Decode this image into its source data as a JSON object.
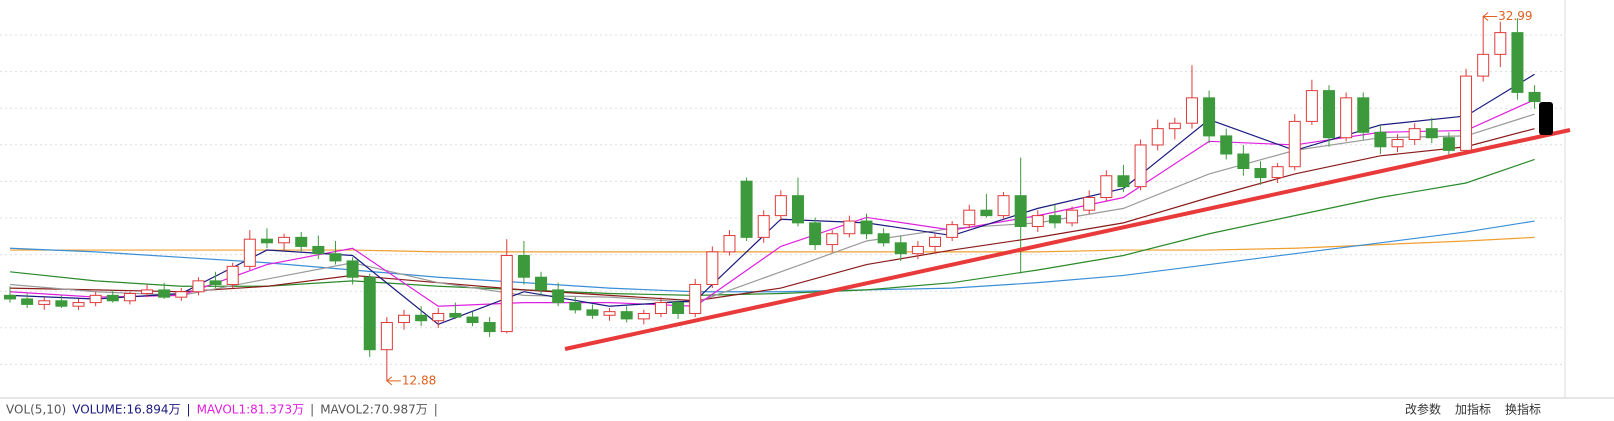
{
  "chart_data": {
    "type": "candlestick",
    "up_color": "#e03a3a",
    "down_color": "#3c9a3c",
    "ylim": [
      12.1,
      33.9
    ],
    "grid": true,
    "candles": [
      [
        17.6,
        18.1,
        17.2,
        17.4
      ],
      [
        17.4,
        17.7,
        16.9,
        17.1
      ],
      [
        17.1,
        17.5,
        16.8,
        17.3
      ],
      [
        17.3,
        17.6,
        16.9,
        17.0
      ],
      [
        17.0,
        17.4,
        16.8,
        17.2
      ],
      [
        17.2,
        17.8,
        17.0,
        17.6
      ],
      [
        17.6,
        17.9,
        17.2,
        17.3
      ],
      [
        17.3,
        17.8,
        17.1,
        17.7
      ],
      [
        17.7,
        18.2,
        17.5,
        17.9
      ],
      [
        17.9,
        18.3,
        17.4,
        17.5
      ],
      [
        17.5,
        18.0,
        17.3,
        17.8
      ],
      [
        17.8,
        18.6,
        17.6,
        18.4
      ],
      [
        18.4,
        18.9,
        18.0,
        18.2
      ],
      [
        18.2,
        19.4,
        18.0,
        19.2
      ],
      [
        19.2,
        21.2,
        19.0,
        20.7
      ],
      [
        20.7,
        21.3,
        20.2,
        20.5
      ],
      [
        20.5,
        21.0,
        20.1,
        20.8
      ],
      [
        20.8,
        21.1,
        20.0,
        20.3
      ],
      [
        20.3,
        20.9,
        19.6,
        19.9
      ],
      [
        19.9,
        20.6,
        19.3,
        19.5
      ],
      [
        19.5,
        19.7,
        18.2,
        18.6
      ],
      [
        18.6,
        18.8,
        14.2,
        14.6
      ],
      [
        14.6,
        16.4,
        12.88,
        16.1
      ],
      [
        16.1,
        16.8,
        15.7,
        16.5
      ],
      [
        16.5,
        17.0,
        15.9,
        16.2
      ],
      [
        16.2,
        16.9,
        15.8,
        16.6
      ],
      [
        16.6,
        17.2,
        16.3,
        16.4
      ],
      [
        16.4,
        16.7,
        15.9,
        16.1
      ],
      [
        16.1,
        16.4,
        15.3,
        15.6
      ],
      [
        15.6,
        20.7,
        15.5,
        19.8
      ],
      [
        19.8,
        20.6,
        18.2,
        18.6
      ],
      [
        18.6,
        18.9,
        17.6,
        17.9
      ],
      [
        17.9,
        18.3,
        17.0,
        17.2
      ],
      [
        17.2,
        17.5,
        16.6,
        16.8
      ],
      [
        16.8,
        17.1,
        16.3,
        16.5
      ],
      [
        16.5,
        16.9,
        16.2,
        16.7
      ],
      [
        16.7,
        17.0,
        16.1,
        16.3
      ],
      [
        16.3,
        16.8,
        16.0,
        16.6
      ],
      [
        16.6,
        17.5,
        16.4,
        17.2
      ],
      [
        17.2,
        17.4,
        16.3,
        16.6
      ],
      [
        16.6,
        18.5,
        16.4,
        18.2
      ],
      [
        18.2,
        20.3,
        18.0,
        20.0
      ],
      [
        20.0,
        21.2,
        19.8,
        20.9
      ],
      [
        23.9,
        24.1,
        20.6,
        20.8
      ],
      [
        20.8,
        22.3,
        20.5,
        22.0
      ],
      [
        22.0,
        23.4,
        21.7,
        23.1
      ],
      [
        23.1,
        24.1,
        21.4,
        21.6
      ],
      [
        21.6,
        21.9,
        20.1,
        20.4
      ],
      [
        20.4,
        21.2,
        20.0,
        21.0
      ],
      [
        21.0,
        22.0,
        20.8,
        21.7
      ],
      [
        21.7,
        22.1,
        20.7,
        21.0
      ],
      [
        21.0,
        21.3,
        20.3,
        20.5
      ],
      [
        20.5,
        20.9,
        19.5,
        19.9
      ],
      [
        19.9,
        20.6,
        19.6,
        20.3
      ],
      [
        20.3,
        21.0,
        20.0,
        20.8
      ],
      [
        20.8,
        21.7,
        20.6,
        21.5
      ],
      [
        21.5,
        22.6,
        21.3,
        22.3
      ],
      [
        22.3,
        23.2,
        21.9,
        22.0
      ],
      [
        22.0,
        23.3,
        21.8,
        23.1
      ],
      [
        23.1,
        25.2,
        18.8,
        21.4
      ],
      [
        21.4,
        22.3,
        21.1,
        22.0
      ],
      [
        22.0,
        22.6,
        21.3,
        21.6
      ],
      [
        21.6,
        22.5,
        21.4,
        22.3
      ],
      [
        22.3,
        23.4,
        22.1,
        23.0
      ],
      [
        23.0,
        24.5,
        22.8,
        24.2
      ],
      [
        24.2,
        24.8,
        23.3,
        23.6
      ],
      [
        23.6,
        26.2,
        23.4,
        25.9
      ],
      [
        25.9,
        27.3,
        25.6,
        26.8
      ],
      [
        26.8,
        27.4,
        26.2,
        27.1
      ],
      [
        27.1,
        30.3,
        26.8,
        28.5
      ],
      [
        28.5,
        28.9,
        26.0,
        26.4
      ],
      [
        26.4,
        26.8,
        25.1,
        25.4
      ],
      [
        25.4,
        25.9,
        24.2,
        24.6
      ],
      [
        24.6,
        25.0,
        23.7,
        24.1
      ],
      [
        24.1,
        24.9,
        23.8,
        24.7
      ],
      [
        24.7,
        27.6,
        24.5,
        27.2
      ],
      [
        27.2,
        29.5,
        27.0,
        28.9
      ],
      [
        28.9,
        29.2,
        25.8,
        26.3
      ],
      [
        26.3,
        28.8,
        26.1,
        28.5
      ],
      [
        28.5,
        28.8,
        26.2,
        26.6
      ],
      [
        26.6,
        27.0,
        25.4,
        25.8
      ],
      [
        25.8,
        26.5,
        25.5,
        26.2
      ],
      [
        26.2,
        27.1,
        25.9,
        26.8
      ],
      [
        26.8,
        27.4,
        26.0,
        26.3
      ],
      [
        26.3,
        26.6,
        25.3,
        25.6
      ],
      [
        25.6,
        30.1,
        25.4,
        29.7
      ],
      [
        29.7,
        32.99,
        29.4,
        30.9
      ],
      [
        30.9,
        32.7,
        30.2,
        32.1
      ],
      [
        32.1,
        32.9,
        28.4,
        28.8
      ],
      [
        28.8,
        29.2,
        27.9,
        28.3
      ]
    ],
    "x": [
      0,
      5,
      10,
      15,
      20,
      25,
      30,
      35,
      40,
      45,
      50,
      55,
      60,
      65,
      70,
      75,
      80,
      85,
      89
    ],
    "series": [
      {
        "color": "#f0a030",
        "values": [
          20.1,
          20.1,
          20.1,
          20.1,
          20.1,
          20.0,
          20.0,
          20.0,
          20.0,
          20.0,
          20.0,
          20.0,
          20.0,
          20.1,
          20.1,
          20.2,
          20.4,
          20.6,
          20.8
        ]
      },
      {
        "color": "#3a8fd8",
        "values": [
          20.2,
          20.0,
          19.7,
          19.4,
          19.0,
          18.6,
          18.3,
          18.0,
          17.8,
          17.8,
          17.9,
          18.0,
          18.3,
          18.7,
          19.3,
          19.9,
          20.5,
          21.1,
          21.7
        ]
      },
      {
        "color": "#2a8a2a",
        "values": [
          18.9,
          18.4,
          18.1,
          18.1,
          18.4,
          18.1,
          17.9,
          17.7,
          17.6,
          17.7,
          17.9,
          18.3,
          19.0,
          19.8,
          21.0,
          22.0,
          23.0,
          23.8,
          25.1
        ]
      },
      {
        "color": "#8b1a1a",
        "values": [
          18.0,
          17.9,
          17.8,
          18.1,
          18.7,
          18.3,
          17.9,
          17.6,
          17.3,
          18.0,
          19.3,
          20.1,
          20.8,
          21.6,
          23.0,
          24.3,
          25.3,
          25.8,
          26.8
        ]
      },
      {
        "color": "#9a9a9a",
        "values": [
          18.2,
          17.8,
          17.6,
          18.5,
          19.4,
          18.3,
          17.6,
          17.5,
          17.2,
          18.9,
          20.6,
          21.3,
          21.6,
          22.4,
          24.3,
          25.6,
          26.3,
          26.4,
          27.6
        ]
      },
      {
        "color": "#e020e0",
        "values": [
          17.8,
          17.5,
          17.6,
          19.3,
          20.2,
          17.0,
          17.2,
          17.2,
          17.0,
          20.3,
          21.9,
          21.2,
          22.0,
          23.0,
          26.1,
          25.9,
          26.6,
          26.7,
          28.4
        ]
      },
      {
        "color": "#1a1a80",
        "values": [
          17.6,
          17.4,
          17.7,
          20.1,
          19.8,
          16.0,
          17.8,
          17.0,
          17.3,
          21.8,
          21.6,
          20.9,
          22.4,
          23.5,
          27.3,
          25.6,
          27.0,
          27.5,
          29.8
        ]
      }
    ],
    "max_label": "32.99",
    "min_label": "12.88",
    "indicator_bar": {
      "name": "VOL(5,10)",
      "volume": "VOLUME:16.894万",
      "mavol1": "MAVOL1:81.373万",
      "mavol2": "MAVOL2:70.987万",
      "separator": "|",
      "buttons": [
        "改参数",
        "加指标",
        "换指标"
      ]
    }
  }
}
